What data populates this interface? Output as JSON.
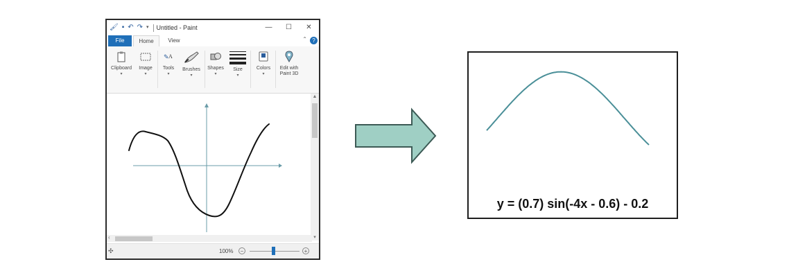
{
  "paint": {
    "title": "Untitled - Paint",
    "icons": [
      "paint-app-icon",
      "save-icon",
      "undo-icon",
      "redo-icon",
      "customize-caret-icon"
    ],
    "window_controls": {
      "minimize": "—",
      "maximize": "☐",
      "close": "✕"
    },
    "tabs": [
      {
        "label": "File",
        "active": false
      },
      {
        "label": "Home",
        "active": true
      },
      {
        "label": "View",
        "active": false
      }
    ],
    "help_label": "?",
    "ribbon": [
      {
        "label": "Clipboard",
        "icon": "clipboard-icon"
      },
      {
        "label": "Image",
        "icon": "image-select-icon"
      },
      {
        "label": "Tools",
        "icon": "tools-icon"
      },
      {
        "label": "Brushes",
        "icon": "brush-icon"
      },
      {
        "label": "Shapes",
        "icon": "shapes-icon"
      },
      {
        "label": "Size",
        "icon": "size-icon"
      },
      {
        "label": "Colors",
        "icon": "colors-icon"
      },
      {
        "label": "Edit with",
        "label2": "Paint 3D",
        "icon": "paint3d-icon"
      }
    ],
    "zoom": "100%",
    "zoom_level_fraction": 0.5,
    "canvas_colors": {
      "stroke": "#111111",
      "axes": "#6a9ca8"
    }
  },
  "result": {
    "equation": "y = (0.7) sin(-4x - 0.6) - 0.2",
    "curve_color": "#4a8f98",
    "function": {
      "amplitude": 0.7,
      "frequency": -4,
      "phase": -0.6,
      "offset": -0.2
    }
  },
  "colors": {
    "arrow_fill": "#9fcfc4",
    "arrow_stroke": "#3c5a55"
  }
}
